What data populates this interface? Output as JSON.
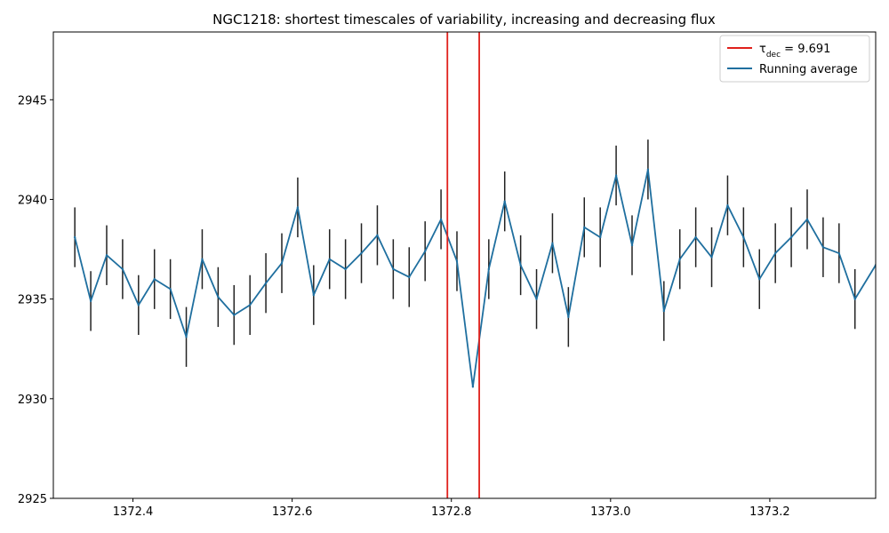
{
  "chart_data": {
    "type": "line",
    "title": "NGC1218: shortest timescales of variability, increasing and decreasing flux",
    "xlabel": "",
    "ylabel": "",
    "xlim": [
      1372.3,
      1373.333
    ],
    "ylim": [
      2925,
      2948.4
    ],
    "x_ticks": [
      1372.4,
      1372.6,
      1372.8,
      1373.0,
      1373.2
    ],
    "x_tick_labels": [
      "1372.4",
      "1372.6",
      "1372.8",
      "1373.0",
      "1373.2"
    ],
    "y_ticks": [
      2925,
      2930,
      2935,
      2940,
      2945
    ],
    "y_tick_labels": [
      "2925",
      "2930",
      "2935",
      "2940",
      "2945"
    ],
    "grid": false,
    "legend_position": "top-right",
    "colors": {
      "running_average": "#1f6f9f",
      "error_bars": "#222222",
      "tau_lines": "#e0201b"
    },
    "vertical_lines": [
      1372.795,
      1372.835
    ],
    "legend": {
      "tau_prefix": "τ",
      "tau_subscript": "dec",
      "tau_value_text": " = 9.691",
      "running_average_label": "Running average"
    },
    "series": [
      {
        "name": "Running average",
        "x": [
          1372.327,
          1372.347,
          1372.367,
          1372.387,
          1372.407,
          1372.427,
          1372.447,
          1372.467,
          1372.487,
          1372.507,
          1372.527,
          1372.547,
          1372.567,
          1372.587,
          1372.607,
          1372.627,
          1372.647,
          1372.667,
          1372.687,
          1372.707,
          1372.727,
          1372.747,
          1372.767,
          1372.787,
          1372.807,
          1372.827,
          1372.847,
          1372.867,
          1372.887,
          1372.907,
          1372.927,
          1372.947,
          1372.967,
          1372.987,
          1373.007,
          1373.027,
          1373.047,
          1373.067,
          1373.087,
          1373.107,
          1373.127,
          1373.147,
          1373.167,
          1373.187,
          1373.207,
          1373.227,
          1373.247,
          1373.267,
          1373.287,
          1373.307,
          1373.333
        ],
        "y": [
          2938.1,
          2934.9,
          2937.2,
          2936.5,
          2934.7,
          2936.0,
          2935.5,
          2933.1,
          2937.0,
          2935.1,
          2934.2,
          2934.7,
          2935.8,
          2936.8,
          2939.6,
          2935.2,
          2937.0,
          2936.5,
          2937.3,
          2938.2,
          2936.5,
          2936.1,
          2937.4,
          2939.0,
          2936.9,
          2930.6,
          2936.5,
          2939.9,
          2936.7,
          2935.0,
          2937.8,
          2934.1,
          2938.6,
          2938.1,
          2941.2,
          2937.7,
          2941.5,
          2934.4,
          2937.0,
          2938.1,
          2937.1,
          2939.7,
          2938.1,
          2936.0,
          2937.3,
          2938.1,
          2939.0,
          2937.6,
          2937.3,
          2935.0,
          2936.7
        ],
        "yerr": [
          1.5,
          1.5,
          1.5,
          1.5,
          1.5,
          1.5,
          1.5,
          1.5,
          1.5,
          1.5,
          1.5,
          1.5,
          1.5,
          1.5,
          1.5,
          1.5,
          1.5,
          1.5,
          1.5,
          1.5,
          1.5,
          1.5,
          1.5,
          1.5,
          1.5,
          0.0,
          1.5,
          1.5,
          1.5,
          1.5,
          1.5,
          1.5,
          1.5,
          1.5,
          1.5,
          1.5,
          1.5,
          1.5,
          1.5,
          1.5,
          1.5,
          1.5,
          1.5,
          1.5,
          1.5,
          1.5,
          1.5,
          1.5,
          1.5,
          1.5,
          0.0
        ]
      }
    ]
  }
}
